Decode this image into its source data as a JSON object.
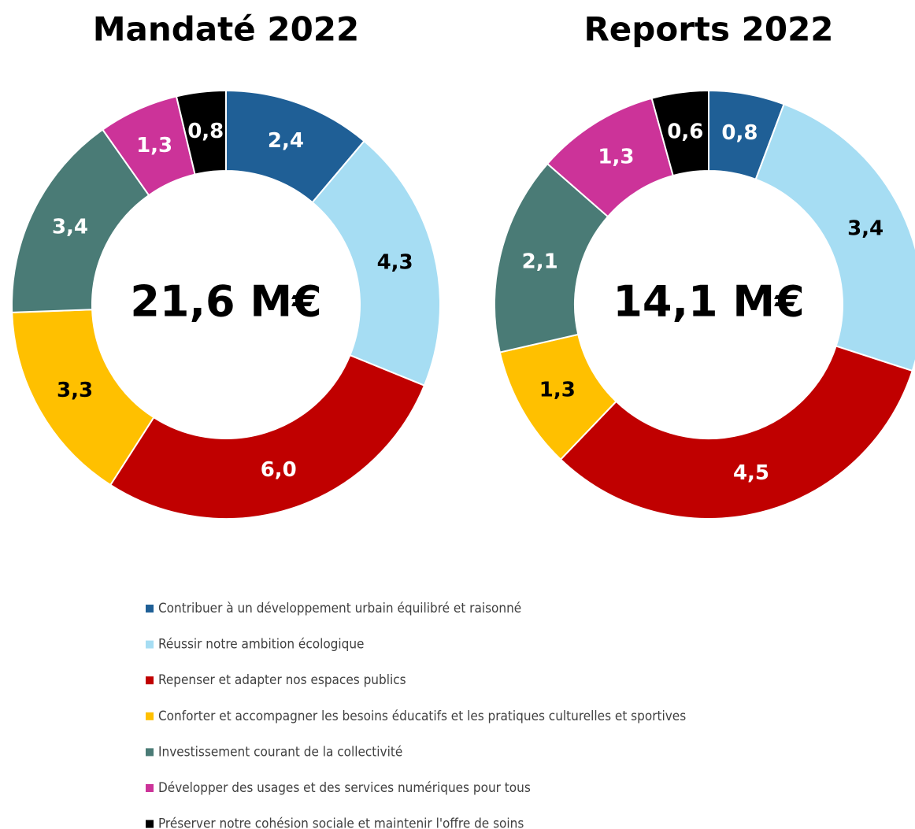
{
  "chart_data": [
    {
      "type": "pie",
      "title": "Mandaté 2022",
      "center_label": "21,6 M€",
      "categories": [
        "Contribuer à un développement urbain équilibré et raisonné",
        "Réussir notre ambition écologique",
        "Repenser et adapter nos espaces publics",
        "Conforter et accompagner les besoins éducatifs et les pratiques culturelles et sportives",
        "Investissement courant de la collectivité",
        "Développer des usages et des services numériques pour tous",
        "Préserver notre cohésion sociale et maintenir l'offre de soins"
      ],
      "values": [
        2.4,
        4.3,
        6.0,
        3.3,
        3.4,
        1.3,
        0.8
      ],
      "value_labels": [
        "2,4",
        "4,3",
        "6,0",
        "3,3",
        "3,4",
        "1,3",
        "0,8"
      ],
      "colors": [
        "#1f5f96",
        "#a6ddf3",
        "#c00000",
        "#ffc000",
        "#4a7b76",
        "#cc3399",
        "#000000"
      ]
    },
    {
      "type": "pie",
      "title": "Reports 2022",
      "center_label": "14,1 M€",
      "values": [
        0.8,
        3.4,
        4.5,
        1.3,
        2.1,
        1.3,
        0.6
      ],
      "value_labels": [
        "0,8",
        "3,4",
        "4,5",
        "1,3",
        "2,1",
        "1,3",
        "0,6"
      ],
      "colors": [
        "#1f5f96",
        "#a6ddf3",
        "#c00000",
        "#ffc000",
        "#4a7b76",
        "#cc3399",
        "#000000"
      ]
    }
  ]
}
